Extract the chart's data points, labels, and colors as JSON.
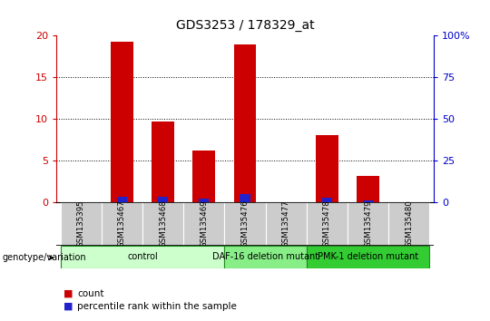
{
  "title": "GDS3253 / 178329_at",
  "samples": [
    "GSM135395",
    "GSM135467",
    "GSM135468",
    "GSM135469",
    "GSM135476",
    "GSM135477",
    "GSM135478",
    "GSM135479",
    "GSM135480"
  ],
  "count_values": [
    0,
    19.2,
    9.7,
    6.2,
    18.9,
    0,
    8.0,
    3.2,
    0
  ],
  "percentile_values": [
    0,
    3.5,
    3.4,
    2.0,
    5.0,
    0,
    2.8,
    1.0,
    0
  ],
  "ylim_left": [
    0,
    20
  ],
  "ylim_right": [
    0,
    100
  ],
  "yticks_left": [
    0,
    5,
    10,
    15,
    20
  ],
  "yticks_right": [
    0,
    25,
    50,
    75,
    100
  ],
  "ytick_labels_right": [
    "0",
    "25",
    "50",
    "75",
    "100%"
  ],
  "bar_color_count": "#cc0000",
  "bar_color_percentile": "#2222cc",
  "bar_width": 0.55,
  "group_defs": [
    {
      "label": "control",
      "start": 0,
      "end": 3,
      "color": "#ccffcc"
    },
    {
      "label": "DAF-16 deletion mutant",
      "start": 4,
      "end": 5,
      "color": "#88ee88"
    },
    {
      "label": "PMK-1 deletion mutant",
      "start": 6,
      "end": 8,
      "color": "#33cc33"
    }
  ],
  "tick_area_color": "#cccccc",
  "legend_count_label": "count",
  "legend_percentile_label": "percentile rank within the sample",
  "genotype_label": "genotype/variation",
  "bg_color": "#ffffff",
  "left_tick_color": "#cc0000",
  "right_tick_color": "#0000cc",
  "grid_yticks": [
    5,
    10,
    15
  ]
}
